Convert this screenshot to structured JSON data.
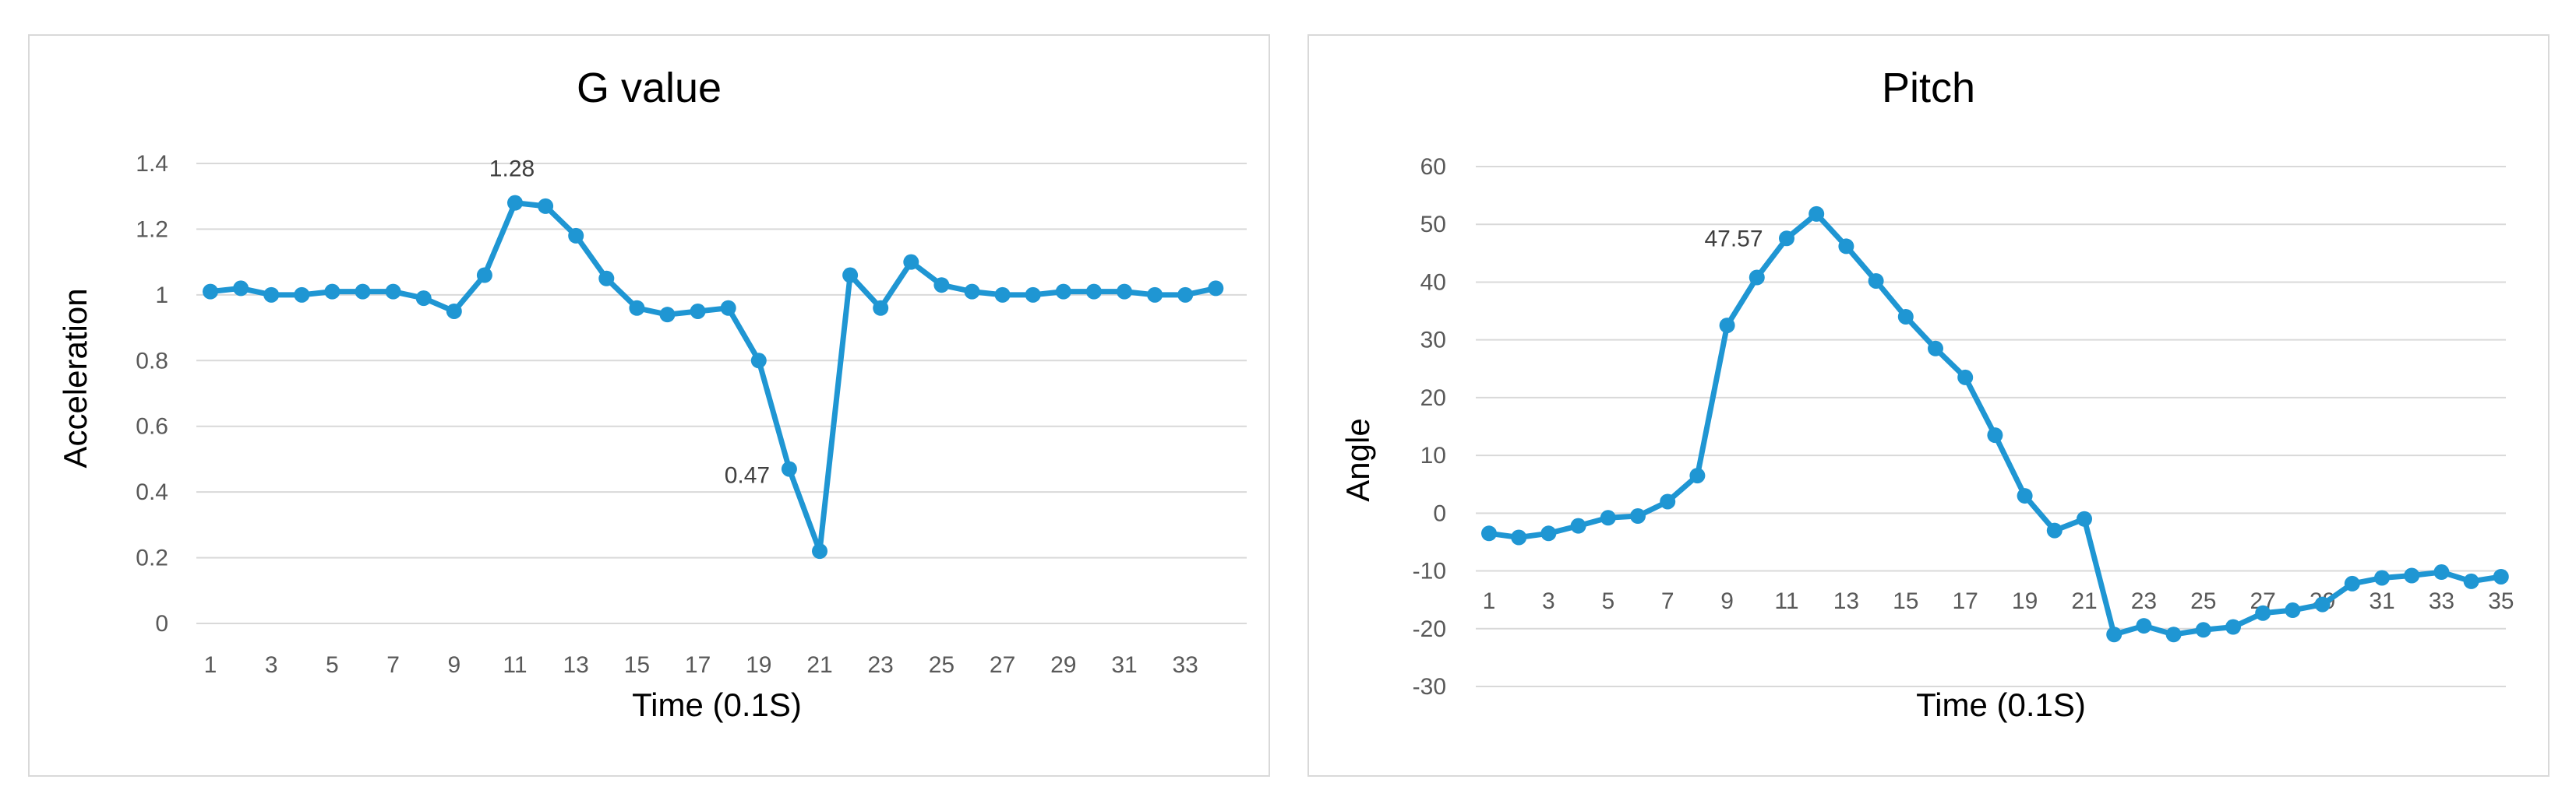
{
  "chart_data": [
    {
      "type": "line",
      "title": "G value",
      "xlabel": "Time (0.1S)",
      "ylabel": "Acceleration",
      "x": [
        1,
        2,
        3,
        4,
        5,
        6,
        7,
        8,
        9,
        10,
        11,
        12,
        13,
        14,
        15,
        16,
        17,
        18,
        19,
        20,
        21,
        22,
        23,
        24,
        25,
        26,
        27,
        28,
        29,
        30,
        31,
        32,
        33,
        34
      ],
      "x_tick_labels": [
        "1",
        "3",
        "5",
        "7",
        "9",
        "11",
        "13",
        "15",
        "17",
        "19",
        "21",
        "23",
        "25",
        "27",
        "29",
        "31",
        "33"
      ],
      "series": [
        {
          "values": [
            1.01,
            1.02,
            1.0,
            1.0,
            1.01,
            1.01,
            1.01,
            0.99,
            0.95,
            1.06,
            1.28,
            1.27,
            1.18,
            1.05,
            0.96,
            0.94,
            0.95,
            0.96,
            0.8,
            0.47,
            0.22,
            1.06,
            0.96,
            1.1,
            1.03,
            1.01,
            1.0,
            1.0,
            1.01,
            1.01,
            1.01,
            1.0,
            1.0,
            1.02
          ]
        }
      ],
      "ylim": [
        0,
        1.4
      ],
      "y_ticks": [
        0,
        0.2,
        0.4,
        0.6,
        0.8,
        1,
        1.2,
        1.4
      ],
      "y_tick_labels": [
        "0",
        "0.2",
        "0.4",
        "0.6",
        "0.8",
        "1",
        "1.2",
        "1.4"
      ],
      "data_labels": [
        {
          "index": 10,
          "text": "1.28"
        },
        {
          "index": 19,
          "text": "0.47"
        }
      ],
      "grid": true,
      "color": "#1f96d3"
    },
    {
      "type": "line",
      "title": "Pitch",
      "xlabel": "Time (0.1S)",
      "ylabel": "Angle",
      "x": [
        1,
        2,
        3,
        4,
        5,
        6,
        7,
        8,
        9,
        10,
        11,
        12,
        13,
        14,
        15,
        16,
        17,
        18,
        19,
        20,
        21,
        22,
        23,
        24,
        25,
        26,
        27,
        28,
        29,
        30,
        31,
        32,
        33,
        34,
        35
      ],
      "x_tick_labels": [
        "1",
        "3",
        "5",
        "7",
        "9",
        "11",
        "13",
        "15",
        "17",
        "19",
        "21",
        "23",
        "25",
        "27",
        "29",
        "31",
        "33",
        "35"
      ],
      "series": [
        {
          "values": [
            -3.5,
            -4.2,
            -3.5,
            -2.2,
            -0.8,
            -0.5,
            2,
            6.5,
            32.5,
            40.8,
            47.57,
            51.8,
            46.2,
            40.2,
            34,
            28.5,
            23.5,
            13.5,
            3,
            -3,
            -1,
            -21,
            -19.5,
            -21,
            -20.2,
            -19.7,
            -17.3,
            -16.8,
            -15.8,
            -12.2,
            -11.2,
            -10.8,
            -10.2,
            -11.8,
            -11
          ]
        }
      ],
      "ylim": [
        -30,
        60
      ],
      "y_ticks": [
        -30,
        -20,
        -10,
        0,
        10,
        20,
        30,
        40,
        50,
        60
      ],
      "y_tick_labels": [
        "-30",
        "-20",
        "-10",
        "0",
        "10",
        "20",
        "30",
        "40",
        "50",
        "60"
      ],
      "data_labels": [
        {
          "index": 10,
          "text": "47.57"
        }
      ],
      "grid": true,
      "color": "#1f96d3"
    }
  ]
}
